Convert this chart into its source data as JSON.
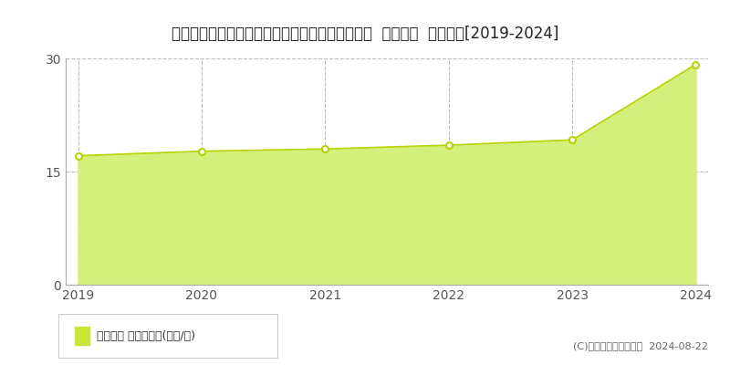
{
  "title": "北海道札幌市北区篠路３条４丁目３８番５７５外  地価公示  地価推移[2019-2024]",
  "years": [
    2019,
    2020,
    2021,
    2022,
    2023,
    2024
  ],
  "values": [
    17.1,
    17.7,
    18.0,
    18.5,
    19.2,
    29.2
  ],
  "ylim": [
    0,
    30
  ],
  "yticks": [
    0,
    15,
    30
  ],
  "fill_color": "#d4ef7b",
  "line_color": "#b8d400",
  "marker_facecolor": "#ffffff",
  "marker_edgecolor": "#b8d400",
  "grid_color": "#bbbbbb",
  "bg_color": "#ffffff",
  "plot_bg_color": "#ffffff",
  "title_fontsize": 12,
  "axis_fontsize": 10,
  "legend_label": "地価公示 平均坪単価(万円/坪)",
  "copyright_text": "(C)土地価格ドットコム  2024-08-22",
  "legend_sq_color": "#c8e635",
  "spine_color": "#aaaaaa",
  "tick_color": "#555555"
}
